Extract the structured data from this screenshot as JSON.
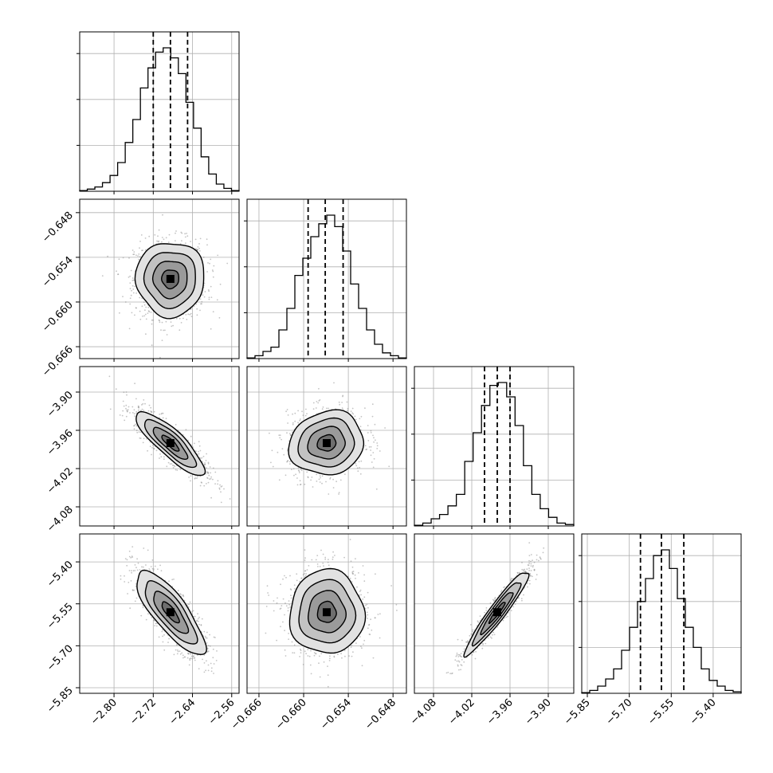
{
  "chart_data": {
    "type": "corner",
    "grid": true,
    "colors": {
      "contour": "#000000",
      "scatter": "#8a8a8a",
      "grid": "#b0b0b0",
      "hist": "#000000"
    },
    "parameters": [
      {
        "mean": -2.685,
        "std": 0.035,
        "range": [
          -2.87,
          -2.545
        ],
        "quantiles": [
          -2.72,
          -2.685,
          -2.65
        ],
        "ticks": [
          -2.8,
          -2.72,
          -2.64,
          -2.56
        ],
        "tick_labels": [
          "−2.80",
          "−2.72",
          "−2.64",
          "−2.56"
        ]
      },
      {
        "mean": -0.6569,
        "std": 0.0025,
        "range": [
          -0.6676,
          -0.6462
        ],
        "quantiles": [
          -0.6594,
          -0.6571,
          -0.6547
        ],
        "ticks": [
          -0.666,
          -0.66,
          -0.654,
          -0.648
        ],
        "tick_labels": [
          "−0.666",
          "−0.660",
          "−0.654",
          "−0.648"
        ]
      },
      {
        "mean": -3.98,
        "std": 0.025,
        "range": [
          -4.11,
          -3.86
        ],
        "quantiles": [
          -4.0,
          -3.98,
          -3.96
        ],
        "ticks": [
          -4.08,
          -4.02,
          -3.96,
          -3.9
        ],
        "tick_labels": [
          "−4.08",
          "−4.02",
          "−3.96",
          "−3.90"
        ]
      },
      {
        "mean": -5.58,
        "std": 0.075,
        "range": [
          -5.87,
          -5.3
        ],
        "quantiles": [
          -5.66,
          -5.585,
          -5.505
        ],
        "ticks": [
          -5.85,
          -5.7,
          -5.55,
          -5.4
        ],
        "tick_labels": [
          "−5.85",
          "−5.70",
          "−5.55",
          "−5.40"
        ]
      }
    ],
    "correlations": [
      {
        "row": 1,
        "col": 0,
        "rho": 0.0
      },
      {
        "row": 2,
        "col": 0,
        "rho": -0.85
      },
      {
        "row": 2,
        "col": 1,
        "rho": 0.1
      },
      {
        "row": 3,
        "col": 0,
        "rho": -0.8
      },
      {
        "row": 3,
        "col": 1,
        "rho": 0.0
      },
      {
        "row": 3,
        "col": 2,
        "rho": 0.95
      }
    ],
    "histograms": [
      [
        0.005,
        0.015,
        0.03,
        0.06,
        0.11,
        0.2,
        0.34,
        0.5,
        0.72,
        0.86,
        0.97,
        1.0,
        0.93,
        0.82,
        0.62,
        0.44,
        0.24,
        0.12,
        0.05,
        0.02,
        0.005
      ],
      [
        0.005,
        0.02,
        0.05,
        0.08,
        0.2,
        0.35,
        0.58,
        0.7,
        0.85,
        0.94,
        1.0,
        0.92,
        0.75,
        0.52,
        0.35,
        0.2,
        0.1,
        0.04,
        0.02,
        0.005
      ],
      [
        0.005,
        0.02,
        0.05,
        0.08,
        0.14,
        0.22,
        0.45,
        0.65,
        0.84,
        0.98,
        1.0,
        0.9,
        0.7,
        0.42,
        0.22,
        0.12,
        0.06,
        0.02,
        0.01
      ],
      [
        0.005,
        0.02,
        0.05,
        0.1,
        0.17,
        0.3,
        0.46,
        0.64,
        0.8,
        0.96,
        1.0,
        0.87,
        0.66,
        0.46,
        0.32,
        0.17,
        0.09,
        0.05,
        0.02,
        0.01
      ]
    ],
    "contour_sigma_levels": [
      0.5,
      1.0,
      1.5,
      2.0
    ]
  }
}
